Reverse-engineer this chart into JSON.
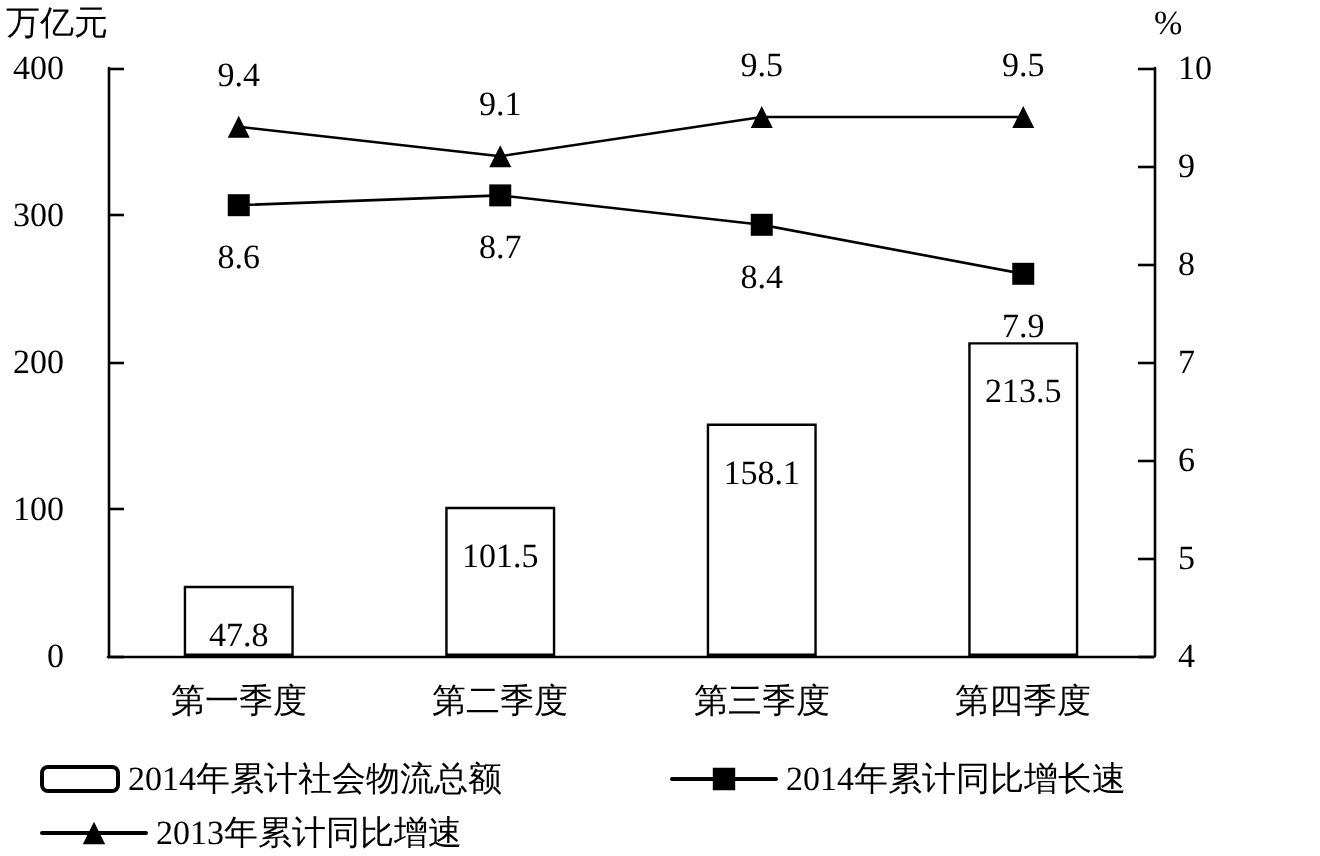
{
  "chart_data": {
    "type": "bar",
    "categories": [
      "第一季度",
      "第二季度",
      "第三季度",
      "第四季度"
    ],
    "ylabel": "万亿元",
    "y2label": "%",
    "ylim": [
      0,
      400
    ],
    "yticks": [
      0,
      100,
      200,
      300,
      400
    ],
    "y2lim": [
      4,
      10
    ],
    "y2ticks": [
      4,
      5,
      6,
      7,
      8,
      9,
      10
    ],
    "grid": false,
    "legend": "bottom",
    "data_labels": true,
    "series": [
      {
        "name": "2014年累计社会物流总额",
        "color": "#ffffff",
        "values": [
          47.8,
          101.5,
          158.1,
          213.5
        ]
      },
      {
        "name": "2014年累计同比增长速",
        "type": "line",
        "axis": "y2",
        "marker": "square",
        "color": "#000000",
        "values": [
          8.6,
          8.7,
          8.4,
          7.9
        ]
      },
      {
        "name": "2013年累计同比增速",
        "type": "line",
        "axis": "y2",
        "marker": "triangle",
        "color": "#000000",
        "values": [
          9.4,
          9.1,
          9.5,
          9.5
        ]
      }
    ]
  }
}
